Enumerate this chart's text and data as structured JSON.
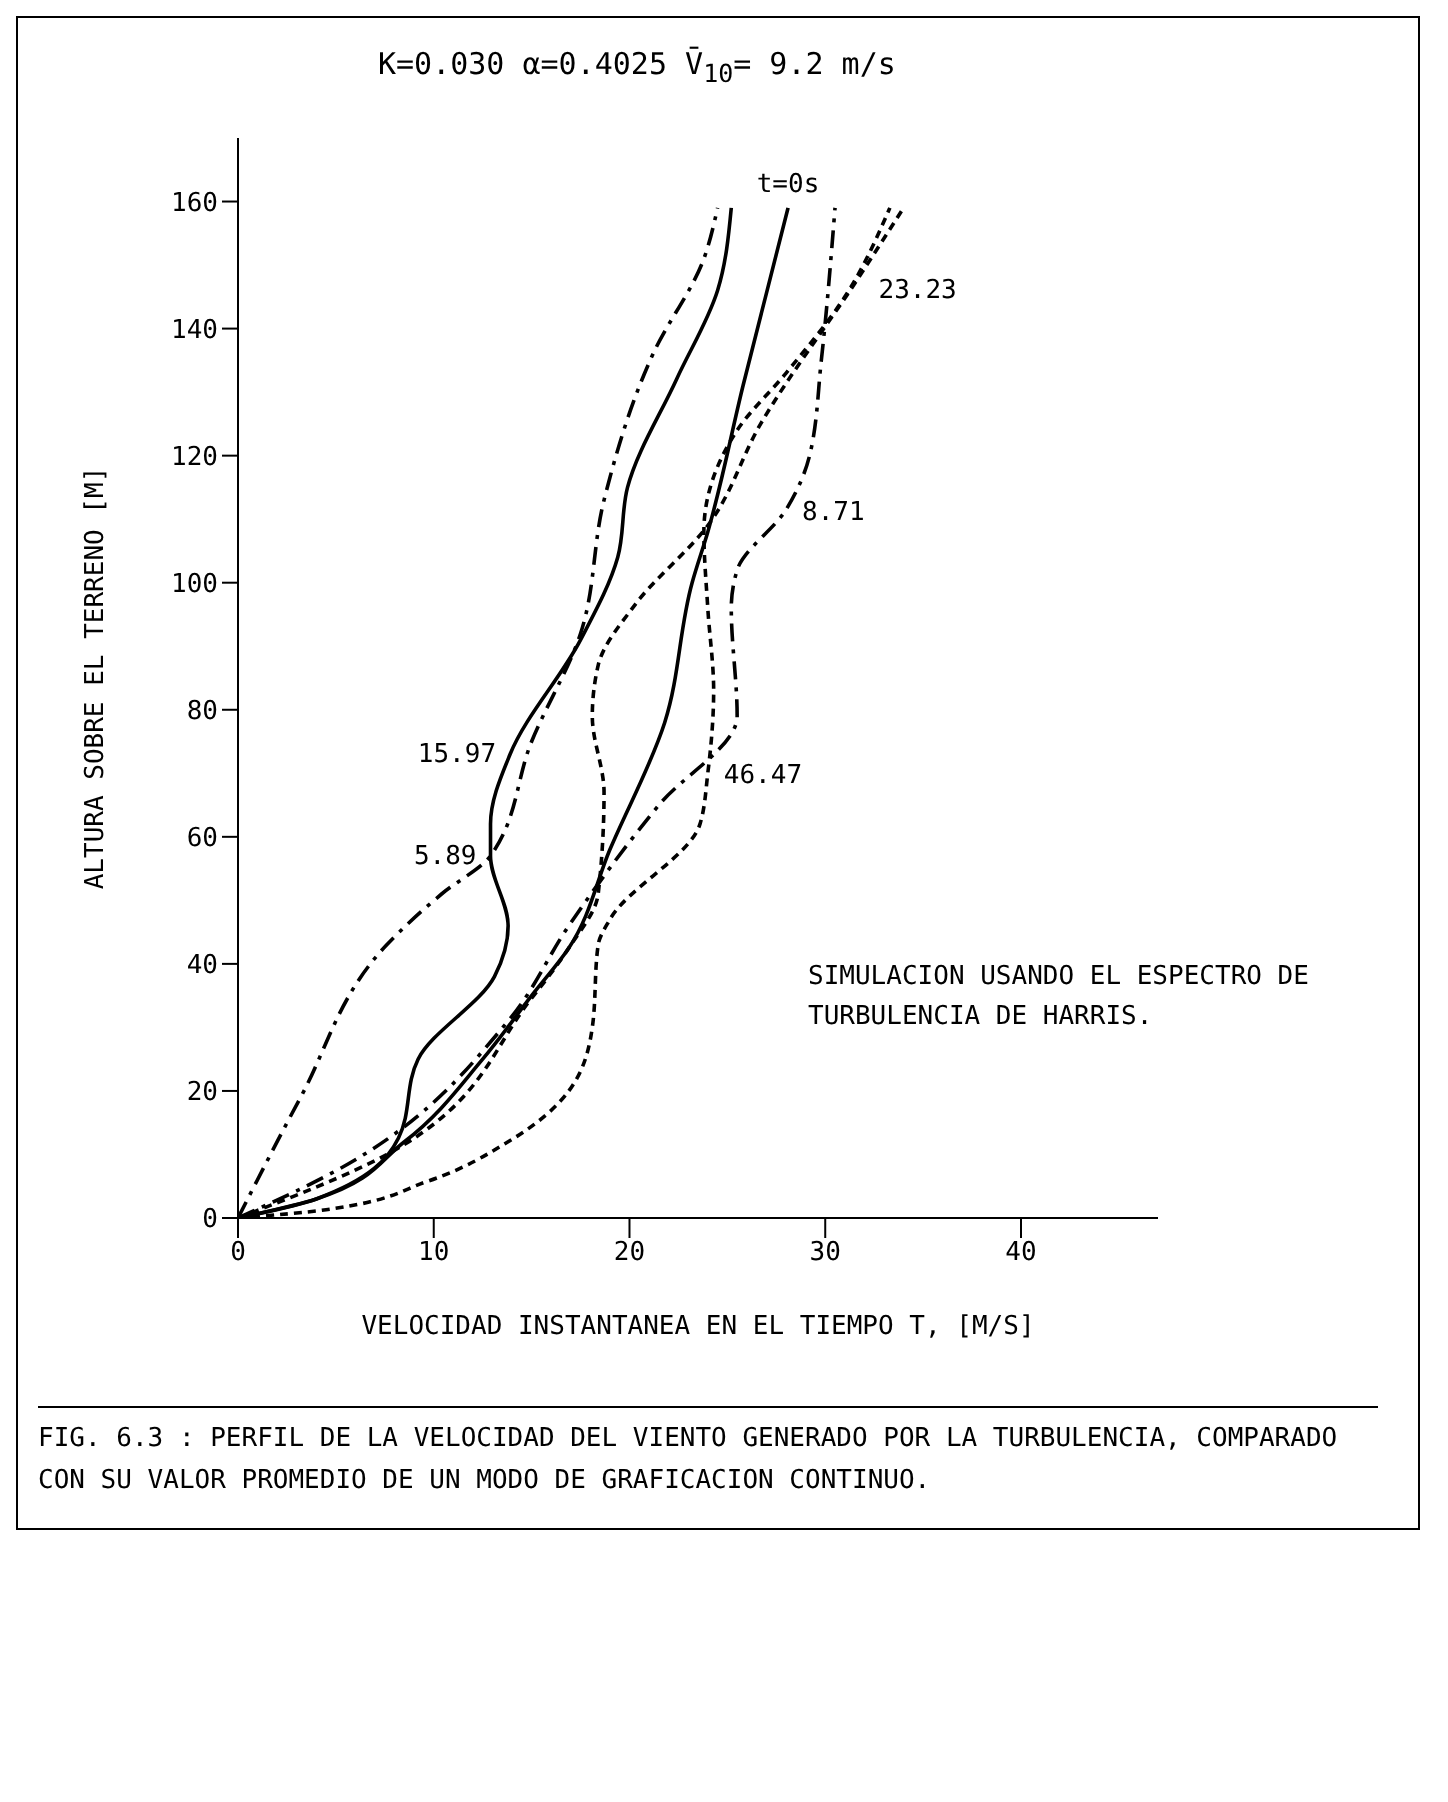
{
  "chart_data": {
    "type": "line",
    "title": "K=0.030    α=0.4025  V̄$_{10}$= 9.2 m/s",
    "xlabel": "VELOCIDAD INSTANTANEA EN EL TIEMPO T, [M/S]",
    "ylabel": "ALTURA SOBRE EL TERRENO [M]",
    "xlim": [
      0,
      47
    ],
    "xticks": [
      0,
      10,
      20,
      30,
      40
    ],
    "ylim": [
      0,
      170
    ],
    "yticks": [
      0,
      20,
      40,
      60,
      80,
      100,
      120,
      140,
      160
    ],
    "series": [
      {
        "name": "t=0s",
        "color": "#000000",
        "line_style": "solid",
        "x": [
          0,
          4,
          8.5,
          12.5,
          15,
          16.9,
          19,
          21.8,
          23.2,
          24,
          25.8,
          28.1
        ],
        "values": [
          0,
          3,
          12,
          25,
          35,
          42.5,
          58,
          78,
          100,
          108,
          131,
          159
        ]
      },
      {
        "name": "5.89",
        "color": "#000000",
        "line_style": "dashed",
        "x": [
          0,
          3.2,
          7.6,
          10.4,
          12.9,
          15,
          17.5,
          18.7,
          21.2,
          23.8,
          24.5
        ],
        "values": [
          0,
          19,
          43,
          51,
          57,
          75,
          92,
          113,
          136,
          151,
          159
        ]
      },
      {
        "name": "8.71",
        "color": "#000000",
        "line_style": "dashed",
        "x": [
          0,
          4.5,
          13.8,
          16.9,
          21.5,
          25.5,
          25.2,
          25.5,
          28,
          29.2,
          29.8,
          30.5
        ],
        "values": [
          0,
          6.6,
          31,
          46,
          65,
          79,
          96,
          102,
          111.5,
          120,
          135,
          159
        ]
      },
      {
        "name": "15.97",
        "color": "#000000",
        "line_style": "solid",
        "x": [
          0,
          4,
          8.2,
          9.2,
          13.1,
          13.8,
          12.9,
          12.9,
          13.9,
          17.5,
          19.4,
          19.9,
          22.4,
          24.5,
          25.2
        ],
        "values": [
          0,
          3,
          12.6,
          25,
          38,
          46,
          57,
          62,
          73,
          91,
          104,
          115,
          132,
          146,
          159
        ]
      },
      {
        "name": "23.23",
        "color": "#000000",
        "line_style": "dotted",
        "x": [
          0,
          7.6,
          15,
          16.9,
          18.4,
          18.7,
          18.1,
          18.4,
          20.3,
          24,
          26.7,
          31.7,
          34
        ],
        "values": [
          0,
          10,
          34.6,
          42.5,
          51,
          67,
          79,
          87,
          96.6,
          109,
          125,
          148,
          159
        ]
      },
      {
        "name": "46.47",
        "color": "#000000",
        "line_style": "dotted",
        "x": [
          0,
          4.5,
          9.7,
          13.8,
          16.9,
          18.1,
          18.4,
          19,
          23.6,
          24,
          24.3,
          24,
          23.8,
          25.5,
          28,
          31,
          33.3
        ],
        "values": [
          0,
          1.3,
          5.8,
          12,
          20,
          30,
          43,
          47,
          62,
          70,
          83,
          96,
          108,
          124,
          133,
          145,
          159
        ]
      }
    ],
    "annotations": [
      "SIMULACION USANDO EL ESPECTRO DE TURBULENCIA DE HARRIS.",
      "FIG. 6.3 : PERFIL DE LA VELOCIDAD DEL VIENTO GENERADO POR LA TURBULENCIA, COMPARADO CON SU VALOR PROMEDIO DE UN MODO DE GRAFICACION CONTINUO."
    ]
  }
}
